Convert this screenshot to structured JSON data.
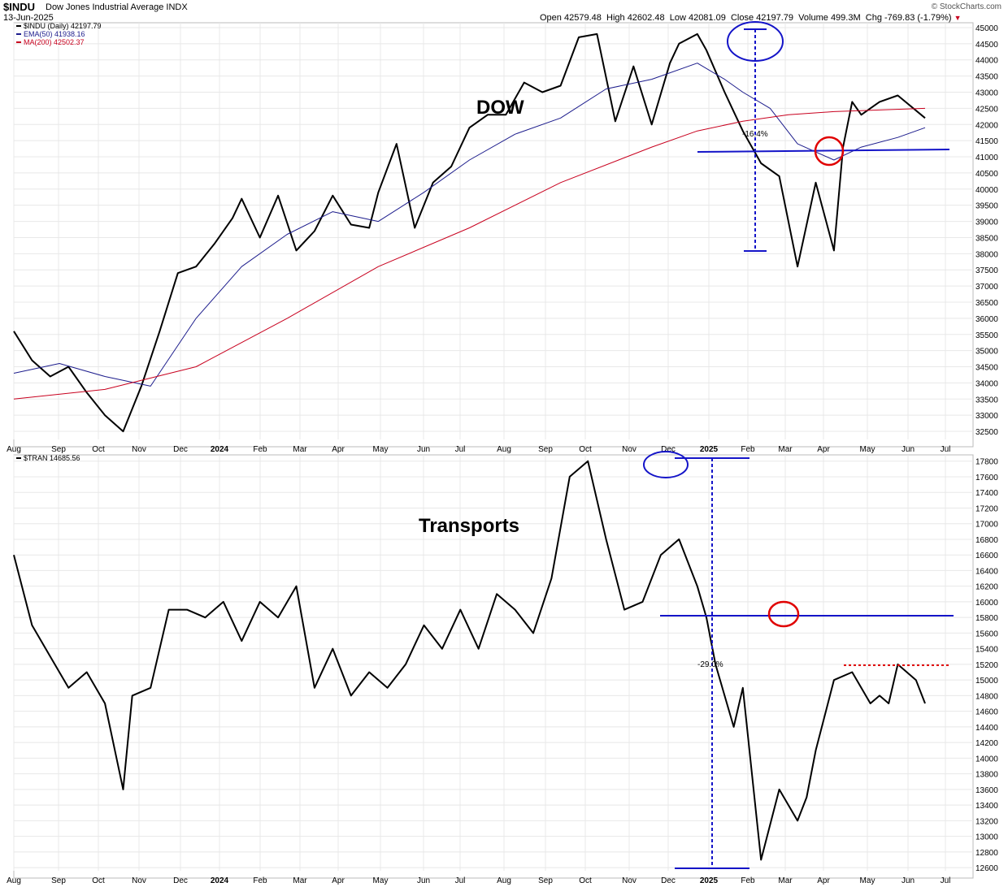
{
  "header": {
    "symbol": "$INDU",
    "name": "Dow Jones Industrial Average INDX",
    "date": "13-Jun-2025",
    "open_label": "Open",
    "open": "42579.48",
    "high_label": "High",
    "high": "42602.48",
    "low_label": "Low",
    "low": "42081.09",
    "close_label": "Close",
    "close": "42197.79",
    "volume_label": "Volume",
    "volume": "499.3M",
    "chg_label": "Chg",
    "chg": "-769.83 (-1.79%)",
    "brand": "© StockCharts.com"
  },
  "colors": {
    "price": "#000000",
    "ema50": "#1c1c8c",
    "ma200": "#c8001e",
    "annotation_blue": "#1414c8",
    "annotation_red": "#e00000",
    "grid": "#e8e8e8"
  },
  "chart_data": [
    {
      "type": "line",
      "symbol": "$INDU",
      "annotation_text": "DOW",
      "legend": [
        {
          "label": "$INDU (Daily) 42197.79",
          "color": "#000000"
        },
        {
          "label": "EMA(50) 41938.16",
          "color": "#1c1c8c"
        },
        {
          "label": "MA(200) 42502.37",
          "color": "#c8001e"
        }
      ],
      "x_ticks": [
        "Aug",
        "Sep",
        "Oct",
        "Nov",
        "Dec",
        "2024",
        "Feb",
        "Mar",
        "Apr",
        "May",
        "Jun",
        "Jul",
        "Aug",
        "Sep",
        "Oct",
        "Nov",
        "Dec",
        "2025",
        "Feb",
        "Mar",
        "Apr",
        "May",
        "Jun",
        "Jul"
      ],
      "y_ticks": [
        32500,
        33000,
        33500,
        34000,
        34500,
        35000,
        35500,
        36000,
        36500,
        37000,
        37500,
        38000,
        38500,
        39000,
        39500,
        40000,
        40500,
        41000,
        41500,
        42000,
        42500,
        43000,
        43500,
        44000,
        44500,
        45000
      ],
      "ylim": [
        32250,
        45150
      ],
      "drawdown_label": "-16.4%",
      "series": [
        {
          "name": "$INDU (Daily)",
          "t": [
            0,
            0.02,
            0.04,
            0.06,
            0.08,
            0.1,
            0.12,
            0.14,
            0.16,
            0.18,
            0.2,
            0.22,
            0.24,
            0.25,
            0.27,
            0.29,
            0.31,
            0.33,
            0.35,
            0.37,
            0.39,
            0.4,
            0.42,
            0.44,
            0.46,
            0.48,
            0.5,
            0.52,
            0.54,
            0.56,
            0.58,
            0.6,
            0.62,
            0.64,
            0.66,
            0.68,
            0.7,
            0.72,
            0.73,
            0.75,
            0.76,
            0.78,
            0.79,
            0.8,
            0.82,
            0.84,
            0.86,
            0.88,
            0.9,
            0.91,
            0.92,
            0.93,
            0.95,
            0.97,
            1.0
          ],
          "values": [
            35600,
            34700,
            34200,
            34500,
            33700,
            33000,
            32500,
            33900,
            35600,
            37400,
            37600,
            38300,
            39100,
            39700,
            38500,
            39800,
            38100,
            38700,
            39800,
            38900,
            38800,
            39900,
            41400,
            38800,
            40200,
            40700,
            41900,
            42300,
            42300,
            43300,
            43000,
            43200,
            44700,
            44800,
            42100,
            43800,
            42000,
            43900,
            44500,
            44800,
            44300,
            43000,
            42400,
            41800,
            40800,
            40400,
            37600,
            40200,
            38100,
            41300,
            42700,
            42300,
            42700,
            42900,
            42200
          ]
        },
        {
          "name": "EMA(50)",
          "t": [
            0,
            0.05,
            0.1,
            0.15,
            0.2,
            0.25,
            0.3,
            0.35,
            0.4,
            0.45,
            0.5,
            0.55,
            0.6,
            0.65,
            0.7,
            0.75,
            0.78,
            0.8,
            0.83,
            0.86,
            0.9,
            0.93,
            0.97,
            1.0
          ],
          "values": [
            34300,
            34600,
            34200,
            33900,
            36000,
            37600,
            38600,
            39300,
            39000,
            39900,
            40900,
            41700,
            42200,
            43100,
            43400,
            43900,
            43400,
            43000,
            42500,
            41400,
            40900,
            41300,
            41600,
            41900
          ]
        },
        {
          "name": "MA(200)",
          "t": [
            0,
            0.1,
            0.2,
            0.3,
            0.4,
            0.5,
            0.6,
            0.7,
            0.75,
            0.8,
            0.85,
            0.9,
            0.95,
            1.0
          ],
          "values": [
            33500,
            33800,
            34500,
            36000,
            37600,
            38800,
            40200,
            41300,
            41800,
            42100,
            42300,
            42400,
            42450,
            42500
          ]
        }
      ]
    },
    {
      "type": "line",
      "symbol": "$TRAN",
      "annotation_text": "Transports",
      "legend": [
        {
          "label": "$TRAN 14685.56",
          "color": "#000000"
        }
      ],
      "x_ticks": [
        "Aug",
        "Sep",
        "Oct",
        "Nov",
        "Dec",
        "2024",
        "Feb",
        "Mar",
        "Apr",
        "May",
        "Jun",
        "Jul",
        "Aug",
        "Sep",
        "Oct",
        "Nov",
        "Dec",
        "2025",
        "Feb",
        "Mar",
        "Apr",
        "May",
        "Jun",
        "Jul"
      ],
      "y_ticks": [
        12600,
        12800,
        13000,
        13200,
        13400,
        13600,
        13800,
        14000,
        14200,
        14400,
        14600,
        14800,
        15000,
        15200,
        15400,
        15600,
        15800,
        16000,
        16200,
        16400,
        16600,
        16800,
        17000,
        17200,
        17400,
        17600,
        17800
      ],
      "ylim": [
        12560,
        17880
      ],
      "drawdown_label": "-29.0%",
      "series": [
        {
          "name": "$TRAN",
          "t": [
            0,
            0.02,
            0.04,
            0.06,
            0.08,
            0.1,
            0.12,
            0.13,
            0.15,
            0.17,
            0.19,
            0.21,
            0.23,
            0.25,
            0.27,
            0.29,
            0.31,
            0.33,
            0.35,
            0.37,
            0.39,
            0.41,
            0.43,
            0.45,
            0.47,
            0.49,
            0.51,
            0.53,
            0.55,
            0.57,
            0.59,
            0.61,
            0.63,
            0.65,
            0.67,
            0.69,
            0.71,
            0.73,
            0.75,
            0.76,
            0.77,
            0.79,
            0.8,
            0.82,
            0.84,
            0.86,
            0.87,
            0.88,
            0.9,
            0.92,
            0.94,
            0.95,
            0.96,
            0.97,
            0.99,
            1.0
          ],
          "values": [
            16600,
            15700,
            15300,
            14900,
            15100,
            14700,
            13600,
            14800,
            14900,
            15900,
            15900,
            15800,
            16000,
            15500,
            16000,
            15800,
            16200,
            14900,
            15400,
            14800,
            15100,
            14900,
            15200,
            15700,
            15400,
            15900,
            15400,
            16100,
            15900,
            15600,
            16300,
            17600,
            17800,
            16800,
            15900,
            16000,
            16600,
            16800,
            16200,
            15800,
            15200,
            14400,
            14900,
            12700,
            13600,
            13200,
            13500,
            14100,
            15000,
            15100,
            14700,
            14800,
            14700,
            15200,
            15000,
            14700
          ]
        }
      ]
    }
  ]
}
